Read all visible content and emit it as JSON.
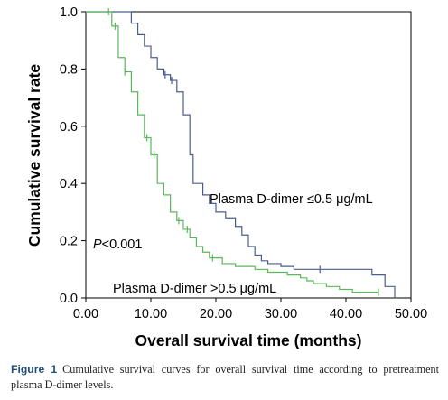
{
  "chart_data": {
    "type": "line",
    "subtype": "step",
    "xlabel": "Overall survival time (months)",
    "ylabel": "Cumulative survival rate",
    "xlim": [
      0,
      50
    ],
    "ylim": [
      0,
      1.0
    ],
    "x_ticks": [
      "0.00",
      "10.00",
      "20.00",
      "30.00",
      "40.00",
      "50.00"
    ],
    "y_ticks": [
      "0.0",
      "0.2",
      "0.4",
      "0.6",
      "0.8",
      "1.0"
    ],
    "grid": false,
    "legend": "none",
    "series": [
      {
        "name": "Plasma D-dimer ≤0.5 μg/mL",
        "color": "#4a5d8e",
        "steps": [
          [
            0,
            1.0
          ],
          [
            7,
            0.96
          ],
          [
            8,
            0.92
          ],
          [
            9,
            0.88
          ],
          [
            10,
            0.84
          ],
          [
            11,
            0.8
          ],
          [
            12,
            0.78
          ],
          [
            13,
            0.76
          ],
          [
            14,
            0.72
          ],
          [
            15,
            0.64
          ],
          [
            16,
            0.5
          ],
          [
            16.5,
            0.4
          ],
          [
            18,
            0.36
          ],
          [
            19,
            0.33
          ],
          [
            20,
            0.3
          ],
          [
            21.5,
            0.28
          ],
          [
            23,
            0.25
          ],
          [
            24,
            0.22
          ],
          [
            25,
            0.18
          ],
          [
            26,
            0.15
          ],
          [
            27,
            0.13
          ],
          [
            28,
            0.12
          ],
          [
            30,
            0.11
          ],
          [
            32,
            0.1
          ],
          [
            44,
            0.08
          ],
          [
            46,
            0.04
          ],
          [
            47.5,
            0.0
          ]
        ],
        "end": 47.5,
        "censored": [
          [
            12.2,
            0.78
          ],
          [
            13.2,
            0.76
          ],
          [
            36,
            0.1
          ]
        ]
      },
      {
        "name": "Plasma D-dimer >0.5 μg/mL",
        "color": "#5cb85c",
        "steps": [
          [
            0,
            1.0
          ],
          [
            4,
            0.95
          ],
          [
            5,
            0.84
          ],
          [
            6,
            0.79
          ],
          [
            7,
            0.72
          ],
          [
            8,
            0.64
          ],
          [
            9,
            0.56
          ],
          [
            10,
            0.5
          ],
          [
            11,
            0.4
          ],
          [
            12,
            0.36
          ],
          [
            13,
            0.3
          ],
          [
            14,
            0.27
          ],
          [
            15,
            0.24
          ],
          [
            16,
            0.21
          ],
          [
            17,
            0.18
          ],
          [
            18,
            0.16
          ],
          [
            19,
            0.14
          ],
          [
            21,
            0.12
          ],
          [
            23,
            0.11
          ],
          [
            26,
            0.1
          ],
          [
            28,
            0.09
          ],
          [
            31,
            0.08
          ],
          [
            33,
            0.07
          ],
          [
            34,
            0.06
          ],
          [
            35,
            0.05
          ],
          [
            37,
            0.04
          ],
          [
            39,
            0.03
          ],
          [
            41,
            0.02
          ],
          [
            45,
            0.02
          ]
        ],
        "end": 45.0,
        "censored": [
          [
            3.5,
            1.0
          ],
          [
            4.5,
            0.95
          ],
          [
            6.0,
            0.79
          ],
          [
            9.4,
            0.56
          ],
          [
            10.5,
            0.5
          ],
          [
            14.3,
            0.27
          ],
          [
            15.6,
            0.24
          ],
          [
            19.5,
            0.14
          ],
          [
            45.0,
            0.02
          ]
        ]
      }
    ],
    "annotations": {
      "series1_label": "Plasma D-dimer ≤0.5 μg/mL",
      "series2_label": "Plasma D-dimer >0.5 μg/mL",
      "p_letter": "P",
      "p_rest": "<0.001"
    }
  },
  "caption": {
    "label": "Figure 1",
    "text": "Cumulative survival curves for overall survival time according to pretreatment plasma D-dimer levels."
  }
}
